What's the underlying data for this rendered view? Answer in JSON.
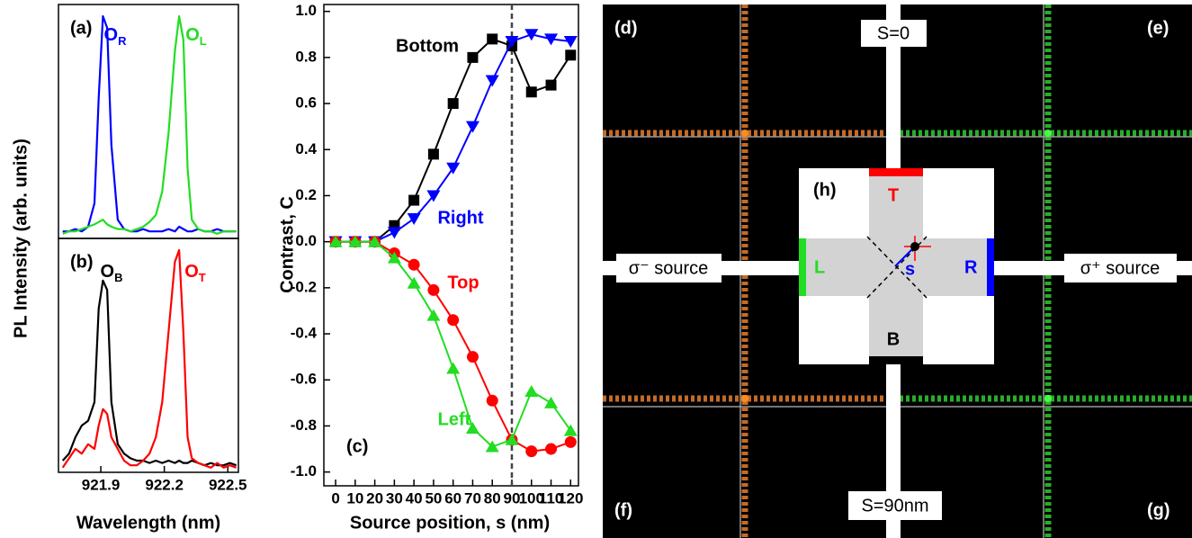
{
  "chart_data": [
    {
      "type": "line",
      "panel": "(a)",
      "ylabel": "PL Intensity (arb. units)",
      "x": [
        921.72,
        921.75,
        921.78,
        921.81,
        921.84,
        921.87,
        921.89,
        921.91,
        921.93,
        921.95,
        921.98,
        922.01,
        922.04,
        922.07,
        922.1,
        922.13,
        922.16,
        922.19,
        922.22,
        922.25,
        922.27,
        922.29,
        922.31,
        922.33,
        922.36,
        922.39,
        922.42,
        922.45,
        922.48,
        922.51,
        922.54
      ],
      "xlim": [
        921.7,
        922.55
      ],
      "ylim": [
        0,
        1
      ],
      "series": [
        {
          "name": "OR",
          "color": "#0000ff",
          "values": [
            0.03,
            0.03,
            0.04,
            0.03,
            0.05,
            0.15,
            0.6,
            0.95,
            0.9,
            0.4,
            0.08,
            0.04,
            0.03,
            0.03,
            0.04,
            0.03,
            0.03,
            0.03,
            0.04,
            0.03,
            0.05,
            0.04,
            0.03,
            0.03,
            0.04,
            0.03,
            0.03,
            0.04,
            0.03,
            0.03,
            0.03
          ]
        },
        {
          "name": "OL",
          "color": "#22dd22",
          "values": [
            0.02,
            0.03,
            0.03,
            0.04,
            0.05,
            0.06,
            0.07,
            0.08,
            0.06,
            0.05,
            0.04,
            0.04,
            0.03,
            0.04,
            0.05,
            0.07,
            0.1,
            0.2,
            0.45,
            0.8,
            0.95,
            0.85,
            0.3,
            0.08,
            0.04,
            0.03,
            0.03,
            0.02,
            0.03,
            0.03,
            0.03
          ]
        }
      ]
    },
    {
      "type": "line",
      "panel": "(b)",
      "xlabel": "Wavelength (nm)",
      "x": [
        921.72,
        921.75,
        921.78,
        921.81,
        921.84,
        921.87,
        921.89,
        921.91,
        921.93,
        921.95,
        921.98,
        922.01,
        922.04,
        922.07,
        922.1,
        922.13,
        922.16,
        922.19,
        922.22,
        922.25,
        922.27,
        922.29,
        922.31,
        922.33,
        922.36,
        922.39,
        922.42,
        922.45,
        922.48,
        922.51,
        922.54
      ],
      "xlim": [
        921.7,
        922.55
      ],
      "xticks": [
        921.9,
        922.2,
        922.5
      ],
      "ylim": [
        0,
        1
      ],
      "series": [
        {
          "name": "OB",
          "color": "#000000",
          "values": [
            0.05,
            0.08,
            0.15,
            0.2,
            0.22,
            0.3,
            0.7,
            0.82,
            0.78,
            0.3,
            0.12,
            0.08,
            0.06,
            0.05,
            0.05,
            0.04,
            0.05,
            0.04,
            0.05,
            0.04,
            0.05,
            0.04,
            0.04,
            0.05,
            0.04,
            0.03,
            0.04,
            0.03,
            0.03,
            0.04,
            0.03
          ]
        },
        {
          "name": "OT",
          "color": "#ff0000",
          "values": [
            0.02,
            0.06,
            0.1,
            0.08,
            0.12,
            0.1,
            0.2,
            0.27,
            0.25,
            0.15,
            0.1,
            0.05,
            0.03,
            0.03,
            0.05,
            0.08,
            0.15,
            0.3,
            0.6,
            0.9,
            0.95,
            0.6,
            0.15,
            0.06,
            0.04,
            0.03,
            0.02,
            0.04,
            0.02,
            0.03,
            0.02
          ]
        }
      ]
    },
    {
      "type": "line",
      "panel": "(c)",
      "xlabel": "Source position, s (nm)",
      "ylabel": "Contrast, C",
      "x": [
        0,
        10,
        20,
        30,
        40,
        50,
        60,
        70,
        80,
        90,
        100,
        110,
        120
      ],
      "xlim": [
        -6,
        124
      ],
      "xticks": [
        0,
        10,
        20,
        30,
        40,
        50,
        60,
        70,
        80,
        90,
        100,
        110,
        120
      ],
      "ylim": [
        -1.06,
        1.03
      ],
      "yticks": [
        {
          "value": -1,
          "label": "-1.0"
        },
        -0.8,
        -0.6,
        -0.4,
        -0.2,
        {
          "value": 0,
          "label": "0.0"
        },
        0.2,
        0.4,
        0.6,
        0.8,
        {
          "value": 1,
          "label": "1.0"
        }
      ],
      "reference_line": 90,
      "series": [
        {
          "name": "Bottom",
          "color": "#000000",
          "marker": "square",
          "values": [
            0,
            0,
            0,
            0.07,
            0.18,
            0.38,
            0.6,
            0.8,
            0.88,
            0.85,
            0.65,
            0.68,
            0.81
          ]
        },
        {
          "name": "Right",
          "color": "#0000ff",
          "marker": "triangle-down",
          "values": [
            0,
            0,
            0,
            0.04,
            0.1,
            0.2,
            0.32,
            0.5,
            0.7,
            0.87,
            0.9,
            0.88,
            0.87
          ]
        },
        {
          "name": "Top",
          "color": "#ff0000",
          "marker": "circle",
          "values": [
            0,
            0,
            0,
            -0.05,
            -0.1,
            -0.21,
            -0.34,
            -0.5,
            -0.69,
            -0.86,
            -0.91,
            -0.9,
            -0.87
          ]
        },
        {
          "name": "Left",
          "color": "#22dd22",
          "marker": "triangle-up",
          "values": [
            0,
            0,
            0,
            -0.07,
            -0.18,
            -0.32,
            -0.55,
            -0.81,
            -0.89,
            -0.86,
            -0.65,
            -0.7,
            -0.82
          ]
        }
      ]
    }
  ],
  "panel_right": {
    "panel_labels": [
      "(d)",
      "(e)",
      "(f)",
      "(g)"
    ],
    "inset_label": "(h)",
    "positions": [
      "S=0",
      "S=90nm"
    ],
    "sources": [
      "σ⁻ source",
      "σ⁺ source"
    ],
    "ports": [
      "T",
      "B",
      "L",
      "R"
    ],
    "arrow_label": "s"
  }
}
